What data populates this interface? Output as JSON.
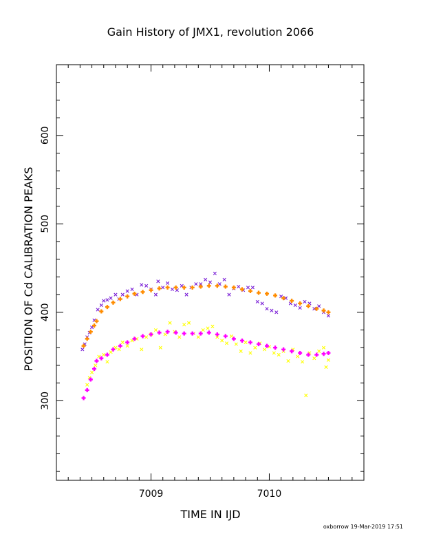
{
  "chart_data": {
    "type": "scatter",
    "title": "Gain History of JMX1, revolution 2066",
    "xlabel": "TIME IN IJD",
    "ylabel": "POSITION OF Cd CALIBRATION PEAKS",
    "xlim": [
      7008.2,
      7010.8
    ],
    "ylim": [
      210,
      680
    ],
    "x_ticks": [
      "7009",
      "7010"
    ],
    "y_ticks": [
      "300",
      "400",
      "500",
      "600"
    ],
    "grid": false,
    "series": [
      {
        "marker": "x",
        "color": "#7a1fd6",
        "x": [
          7008.42,
          7008.44,
          7008.46,
          7008.48,
          7008.5,
          7008.52,
          7008.55,
          7008.58,
          7008.6,
          7008.63,
          7008.66,
          7008.7,
          7008.73,
          7008.76,
          7008.8,
          7008.84,
          7008.88,
          7008.92,
          7008.96,
          7009.0,
          7009.04,
          7009.06,
          7009.1,
          7009.14,
          7009.18,
          7009.22,
          7009.26,
          7009.3,
          7009.34,
          7009.38,
          7009.42,
          7009.46,
          7009.5,
          7009.54,
          7009.58,
          7009.62,
          7009.66,
          7009.7,
          7009.74,
          7009.78,
          7009.82,
          7009.86,
          7009.9,
          7009.94,
          7009.98,
          7010.02,
          7010.06,
          7010.1,
          7010.14,
          7010.18,
          7010.22,
          7010.26,
          7010.3,
          7010.34,
          7010.38,
          7010.42,
          7010.46,
          7010.5
        ],
        "y": [
          358,
          364,
          372,
          377,
          383,
          391,
          403,
          408,
          413,
          414,
          416,
          420,
          415,
          420,
          424,
          426,
          420,
          431,
          430,
          426,
          420,
          435,
          428,
          433,
          426,
          425,
          430,
          420,
          428,
          432,
          432,
          437,
          434,
          444,
          432,
          437,
          420,
          427,
          429,
          425,
          428,
          428,
          412,
          410,
          404,
          402,
          400,
          418,
          416,
          410,
          408,
          405,
          412,
          410,
          404,
          407,
          400,
          396
        ]
      },
      {
        "marker": "x",
        "color": "#ffff00",
        "x": [
          7008.46,
          7008.48,
          7008.5,
          7008.53,
          7008.56,
          7008.6,
          7008.63,
          7008.66,
          7008.7,
          7008.73,
          7008.76,
          7008.8,
          7008.84,
          7008.88,
          7008.92,
          7008.96,
          7009.0,
          7009.04,
          7009.08,
          7009.12,
          7009.16,
          7009.2,
          7009.24,
          7009.28,
          7009.32,
          7009.36,
          7009.4,
          7009.44,
          7009.48,
          7009.52,
          7009.56,
          7009.6,
          7009.64,
          7009.68,
          7009.72,
          7009.76,
          7009.8,
          7009.84,
          7009.88,
          7009.92,
          7009.96,
          7010.0,
          7010.04,
          7010.08,
          7010.12,
          7010.16,
          7010.2,
          7010.24,
          7010.28,
          7010.31,
          7010.34,
          7010.38,
          7010.42,
          7010.46,
          7010.48,
          7010.5
        ],
        "y": [
          318,
          326,
          332,
          340,
          350,
          352,
          344,
          355,
          360,
          358,
          366,
          362,
          368,
          370,
          358,
          372,
          375,
          380,
          360,
          375,
          388,
          378,
          372,
          386,
          388,
          376,
          372,
          380,
          382,
          384,
          372,
          368,
          365,
          373,
          364,
          356,
          366,
          354,
          360,
          365,
          358,
          361,
          354,
          352,
          356,
          345,
          358,
          350,
          344,
          306,
          354,
          348,
          356,
          360,
          338,
          346
        ]
      },
      {
        "marker": "+",
        "color": "#ff8c00",
        "x": [
          7008.43,
          7008.46,
          7008.49,
          7008.52,
          7008.54,
          7008.58,
          7008.63,
          7008.68,
          7008.74,
          7008.8,
          7008.86,
          7008.93,
          7009.0,
          7009.07,
          7009.14,
          7009.21,
          7009.28,
          7009.35,
          7009.42,
          7009.49,
          7009.56,
          7009.63,
          7009.7,
          7009.77,
          7009.84,
          7009.91,
          7009.98,
          7010.05,
          7010.12,
          7010.19,
          7010.26,
          7010.33,
          7010.4,
          7010.46,
          7010.5
        ],
        "y": [
          362,
          370,
          378,
          385,
          390,
          401,
          406,
          411,
          415,
          418,
          421,
          423,
          425,
          427,
          428,
          428,
          428,
          428,
          429,
          430,
          430,
          429,
          428,
          426,
          424,
          422,
          421,
          419,
          416,
          413,
          410,
          407,
          404,
          402,
          400
        ]
      },
      {
        "marker": "+",
        "color": "#ff00ff",
        "x": [
          7008.43,
          7008.46,
          7008.49,
          7008.52,
          7008.54,
          7008.58,
          7008.63,
          7008.68,
          7008.74,
          7008.8,
          7008.86,
          7008.93,
          7009.0,
          7009.07,
          7009.14,
          7009.21,
          7009.28,
          7009.35,
          7009.42,
          7009.49,
          7009.56,
          7009.63,
          7009.7,
          7009.77,
          7009.84,
          7009.91,
          7009.98,
          7010.05,
          7010.12,
          7010.19,
          7010.26,
          7010.33,
          7010.4,
          7010.46,
          7010.5
        ],
        "y": [
          303,
          312,
          324,
          336,
          345,
          348,
          352,
          358,
          362,
          366,
          370,
          373,
          375,
          377,
          378,
          377,
          376,
          376,
          376,
          377,
          375,
          373,
          370,
          368,
          366,
          364,
          362,
          360,
          358,
          356,
          354,
          352,
          352,
          353,
          354
        ]
      }
    ]
  },
  "footer": "oxborrow 19-Mar-2019 17:51"
}
